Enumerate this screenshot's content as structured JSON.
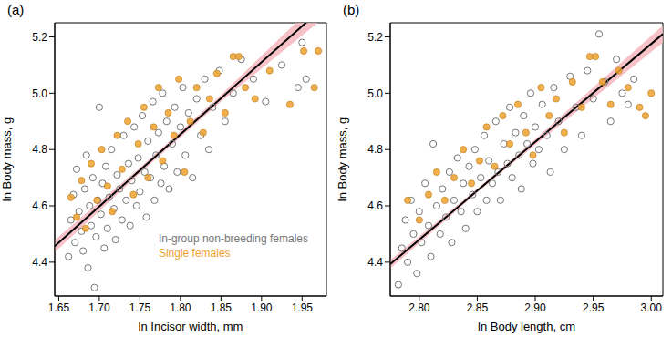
{
  "chart_data": [
    {
      "type": "scatter",
      "panel_label": "(a)",
      "x_label": "ln Incisor width, mm",
      "y_label": "ln Body mass, g",
      "xlim": [
        1.645,
        1.98
      ],
      "ylim": [
        4.28,
        5.25
      ],
      "xticks": [
        1.65,
        {
          "value": 1.7,
          "label": "1.70"
        },
        1.75,
        {
          "value": 1.8,
          "label": "1.80"
        },
        1.85,
        {
          "value": 1.9,
          "label": "1.90"
        },
        1.95
      ],
      "yticks": [
        4.4,
        4.6,
        4.8,
        {
          "value": 5,
          "label": "5.0"
        },
        5.2
      ],
      "legend": "lower right",
      "series": [
        {
          "name": "In-group non-breeding females",
          "color": "#777777",
          "marker": "open_circle",
          "x": [
            1.662,
            1.665,
            1.668,
            1.67,
            1.672,
            1.675,
            1.678,
            1.68,
            1.682,
            1.684,
            1.686,
            1.688,
            1.69,
            1.692,
            1.694,
            1.696,
            1.698,
            1.7,
            1.702,
            1.704,
            1.706,
            1.708,
            1.71,
            1.712,
            1.715,
            1.718,
            1.72,
            1.722,
            1.725,
            1.728,
            1.73,
            1.733,
            1.736,
            1.738,
            1.74,
            1.743,
            1.746,
            1.748,
            1.75,
            1.753,
            1.756,
            1.758,
            1.76,
            1.763,
            1.766,
            1.768,
            1.77,
            1.773,
            1.776,
            1.778,
            1.78,
            1.783,
            1.786,
            1.79,
            1.793,
            1.796,
            1.8,
            1.803,
            1.806,
            1.81,
            1.815,
            1.82,
            1.825,
            1.83,
            1.835,
            1.84,
            1.848,
            1.855,
            1.865,
            1.875,
            1.89,
            1.905,
            1.925,
            1.945,
            1.95,
            1.955
          ],
          "values": [
            4.42,
            4.55,
            4.64,
            4.47,
            4.73,
            4.58,
            4.51,
            4.44,
            4.66,
            4.78,
            4.38,
            4.6,
            4.53,
            4.7,
            4.31,
            4.49,
            4.62,
            4.95,
            4.57,
            4.68,
            4.45,
            4.74,
            4.52,
            4.63,
            4.8,
            4.59,
            4.48,
            4.71,
            4.66,
            4.55,
            4.85,
            4.62,
            4.75,
            4.53,
            4.69,
            4.88,
            4.6,
            4.77,
            4.65,
            4.92,
            4.72,
            4.56,
            4.83,
            4.7,
            4.97,
            4.62,
            4.78,
            4.86,
            4.68,
            5.0,
            4.74,
            4.9,
            4.66,
            4.82,
            4.95,
            4.72,
            4.88,
            5.02,
            4.78,
            4.93,
            4.7,
            4.98,
            4.85,
            5.05,
            4.8,
            4.95,
            5.08,
            4.9,
            5.0,
            5.12,
            5.05,
            4.97,
            5.1,
            5.02,
            5.18,
            5.05
          ]
        },
        {
          "name": "Single females",
          "color": "#f0a22e",
          "marker": "filled_circle",
          "x": [
            1.665,
            1.672,
            1.678,
            1.683,
            1.69,
            1.697,
            1.703,
            1.71,
            1.716,
            1.722,
            1.728,
            1.735,
            1.742,
            1.748,
            1.755,
            1.76,
            1.767,
            1.773,
            1.778,
            1.785,
            1.792,
            1.798,
            1.805,
            1.812,
            1.82,
            1.828,
            1.836,
            1.845,
            1.855,
            1.865,
            1.872,
            1.88,
            1.892,
            1.91,
            1.935,
            1.952,
            1.965,
            1.97
          ],
          "values": [
            4.63,
            4.56,
            4.69,
            4.52,
            4.75,
            4.62,
            4.8,
            4.67,
            4.58,
            4.85,
            4.73,
            4.9,
            4.64,
            4.82,
            4.95,
            4.7,
            4.88,
            5.02,
            4.76,
            4.93,
            4.85,
            5.05,
            4.72,
            4.9,
            5.02,
            4.86,
            4.98,
            5.07,
            4.93,
            5.13,
            5.13,
            5.02,
            4.98,
            5.08,
            4.96,
            5.15,
            5.02,
            5.15
          ]
        }
      ],
      "fit": {
        "color": "#000000",
        "band_color": "#f4b3ba",
        "x": [
          1.645,
          1.75,
          1.85,
          1.98
        ],
        "y": [
          4.457,
          4.726,
          4.982,
          5.315
        ],
        "lower": [
          4.435,
          4.716,
          4.97,
          5.275
        ],
        "upper": [
          4.479,
          4.736,
          4.994,
          5.355
        ]
      }
    },
    {
      "type": "scatter",
      "panel_label": "(b)",
      "x_label": "ln Body length, cm",
      "y_label": "ln Body mass, g",
      "xlim": [
        2.775,
        3.01
      ],
      "ylim": [
        4.28,
        5.25
      ],
      "xticks": [
        {
          "value": 2.8,
          "label": "2.80"
        },
        2.85,
        {
          "value": 2.9,
          "label": "2.90"
        },
        2.95,
        {
          "value": 3,
          "label": "3.00"
        }
      ],
      "yticks": [
        4.4,
        4.6,
        4.8,
        {
          "value": 5,
          "label": "5.0"
        },
        5.2
      ],
      "series": [
        {
          "name": "In-group non-breeding females",
          "color": "#777777",
          "marker": "open_circle",
          "x": [
            2.782,
            2.785,
            2.788,
            2.79,
            2.793,
            2.795,
            2.798,
            2.8,
            2.802,
            2.805,
            2.808,
            2.81,
            2.812,
            2.815,
            2.818,
            2.82,
            2.823,
            2.826,
            2.828,
            2.83,
            2.833,
            2.836,
            2.838,
            2.84,
            2.843,
            2.846,
            2.848,
            2.85,
            2.853,
            2.856,
            2.858,
            2.86,
            2.863,
            2.866,
            2.868,
            2.87,
            2.873,
            2.876,
            2.878,
            2.88,
            2.883,
            2.886,
            2.888,
            2.89,
            2.893,
            2.896,
            2.898,
            2.9,
            2.903,
            2.906,
            2.91,
            2.913,
            2.916,
            2.92,
            2.925,
            2.93,
            2.935,
            2.94,
            2.945,
            2.95,
            2.955,
            2.96,
            2.965,
            2.97,
            2.975,
            2.98,
            2.985
          ],
          "values": [
            4.32,
            4.45,
            4.55,
            4.4,
            4.62,
            4.5,
            4.36,
            4.58,
            4.47,
            4.68,
            4.53,
            4.42,
            4.82,
            4.6,
            4.5,
            4.66,
            4.56,
            4.72,
            4.47,
            4.62,
            4.77,
            4.58,
            4.68,
            4.52,
            4.74,
            4.64,
            4.8,
            4.58,
            4.7,
            4.85,
            4.62,
            4.76,
            4.68,
            4.9,
            4.72,
            4.62,
            4.82,
            4.75,
            4.95,
            4.7,
            4.86,
            4.78,
            4.66,
            4.92,
            4.82,
            5.0,
            4.75,
            4.88,
            4.8,
            4.96,
            4.85,
            4.72,
            5.02,
            4.9,
            4.8,
            5.06,
            4.95,
            4.85,
            5.08,
            4.98,
            5.21,
            5.04,
            4.9,
            5.12,
            5.0,
            4.96,
            5.05
          ]
        },
        {
          "name": "Single females",
          "color": "#f0a22e",
          "marker": "filled_circle",
          "x": [
            2.79,
            2.8,
            2.808,
            2.815,
            2.822,
            2.83,
            2.838,
            2.845,
            2.852,
            2.858,
            2.865,
            2.872,
            2.878,
            2.885,
            2.892,
            2.898,
            2.905,
            2.912,
            2.918,
            2.925,
            2.932,
            2.94,
            2.947,
            2.952,
            2.958,
            2.965,
            2.972,
            2.98,
            2.99,
            2.995,
            3.0
          ],
          "values": [
            4.62,
            4.55,
            4.64,
            4.72,
            4.62,
            4.7,
            4.8,
            4.68,
            4.76,
            4.88,
            4.74,
            4.92,
            4.82,
            4.96,
            4.86,
            4.78,
            5.02,
            4.92,
            4.98,
            4.86,
            5.04,
            4.95,
            5.13,
            5.13,
            5.04,
            4.96,
            5.08,
            5.02,
            4.95,
            4.92,
            5.0
          ]
        }
      ],
      "fit": {
        "color": "#000000",
        "band_color": "#f4b3ba",
        "x": [
          2.775,
          2.85,
          2.9,
          3.01
        ],
        "y": [
          4.393,
          4.654,
          4.827,
          5.21
        ],
        "lower": [
          4.378,
          4.647,
          4.817,
          5.18
        ],
        "upper": [
          4.408,
          4.661,
          4.837,
          5.24
        ]
      }
    }
  ]
}
